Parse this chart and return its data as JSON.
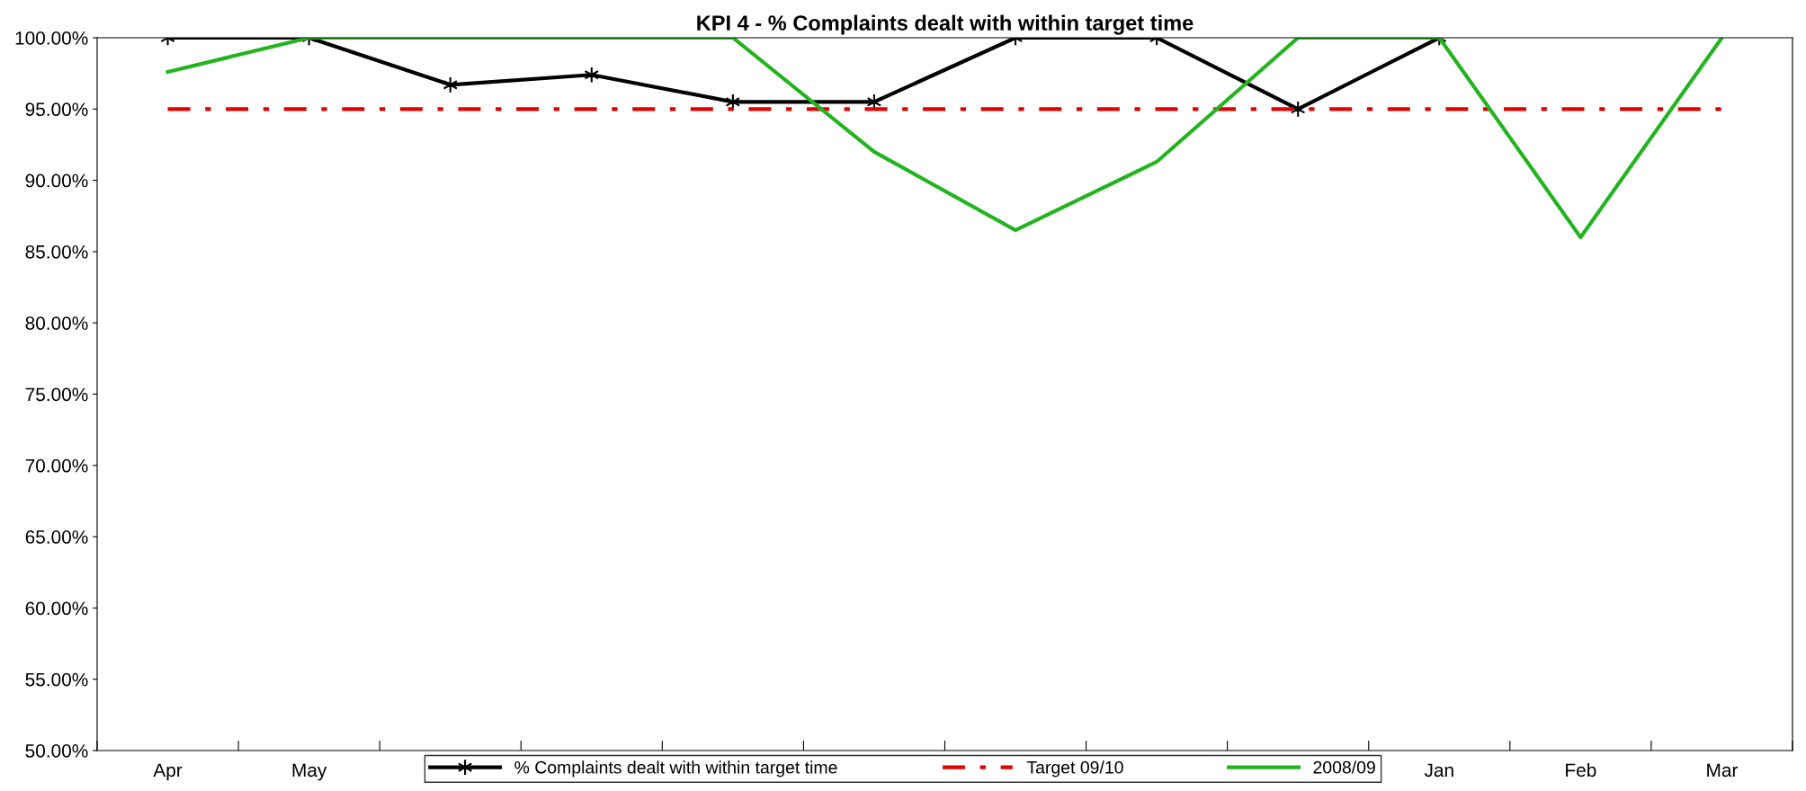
{
  "chart_data": {
    "type": "line",
    "title": "KPI 4 - % Complaints dealt with within target time",
    "categories": [
      "Apr",
      "May",
      null,
      null,
      null,
      null,
      null,
      null,
      null,
      "Jan",
      "Feb",
      "Mar"
    ],
    "series": [
      {
        "name": "% Complaints dealt with within target time",
        "color": "#000000",
        "marker": "cross",
        "values": [
          100,
          100,
          96.7,
          97.4,
          95.5,
          95.5,
          100,
          100,
          95,
          100,
          null,
          null
        ]
      },
      {
        "name": "Target 09/10",
        "color": "#e00000",
        "line_style": "dashed",
        "values": [
          95,
          95,
          95,
          95,
          95,
          95,
          95,
          95,
          95,
          95,
          95,
          95
        ]
      },
      {
        "name": "2008/09",
        "color": "#22b41e",
        "values": [
          97.6,
          100,
          100,
          100,
          100,
          92,
          86.5,
          91.3,
          100,
          100,
          86,
          100
        ]
      }
    ],
    "ylim": [
      50,
      100
    ],
    "yticks": [
      {
        "value": 50,
        "label": "50.00%"
      },
      {
        "value": 55,
        "label": "55.00%"
      },
      {
        "value": 60,
        "label": "60.00%"
      },
      {
        "value": 65,
        "label": "65.00%"
      },
      {
        "value": 70,
        "label": "70.00%"
      },
      {
        "value": 75,
        "label": "75.00%"
      },
      {
        "value": 80,
        "label": "80.00%"
      },
      {
        "value": 85,
        "label": "85.00%"
      },
      {
        "value": 90,
        "label": "90.00%"
      },
      {
        "value": 95,
        "label": "95.00%"
      },
      {
        "value": 100,
        "label": "100.00%"
      }
    ],
    "grid": false,
    "legend": "bottom"
  }
}
